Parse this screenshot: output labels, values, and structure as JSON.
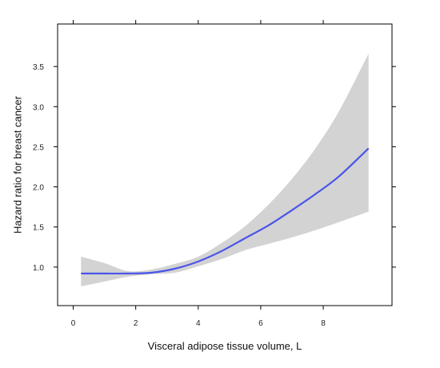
{
  "chart_data": {
    "type": "line",
    "title": "",
    "xlabel": "Visceral adipose tissue volume, L",
    "ylabel": "Hazard ratio for breast cancer",
    "xlim": [
      -0.5,
      10.2
    ],
    "ylim": [
      0.52,
      4.03
    ],
    "x_ticks": [
      0,
      2,
      4,
      6,
      8
    ],
    "x_tick_labels": [
      "0",
      "2",
      "4",
      "6",
      "8"
    ],
    "y_ticks": [
      1.0,
      1.5,
      2.0,
      2.5,
      3.0,
      3.5
    ],
    "y_tick_labels": [
      "1.0",
      "1.5",
      "2.0",
      "2.5",
      "3.0",
      "3.5"
    ],
    "grid": false,
    "colors": {
      "line": "#4a55e8",
      "band": "#d3d3d3",
      "axis": "#000000"
    },
    "series": [
      {
        "kind": "estimate",
        "x": [
          0.25,
          1.0,
          1.75,
          2.5,
          3.25,
          4.0,
          4.75,
          5.5,
          6.25,
          7.0,
          7.75,
          8.5,
          9.45
        ],
        "y": [
          0.92,
          0.92,
          0.92,
          0.93,
          0.98,
          1.07,
          1.2,
          1.36,
          1.52,
          1.71,
          1.91,
          2.13,
          2.48
        ]
      },
      {
        "kind": "ci_band",
        "x": [
          0.25,
          1.0,
          1.75,
          2.5,
          3.25,
          4.0,
          4.75,
          5.5,
          6.25,
          7.0,
          7.75,
          8.5,
          9.45
        ],
        "upper": [
          1.13,
          1.05,
          0.95,
          0.97,
          1.04,
          1.13,
          1.3,
          1.51,
          1.78,
          2.1,
          2.48,
          2.94,
          3.66
        ],
        "lower": [
          0.76,
          0.82,
          0.88,
          0.91,
          0.93,
          1.01,
          1.1,
          1.21,
          1.29,
          1.37,
          1.46,
          1.56,
          1.69
        ]
      }
    ]
  }
}
